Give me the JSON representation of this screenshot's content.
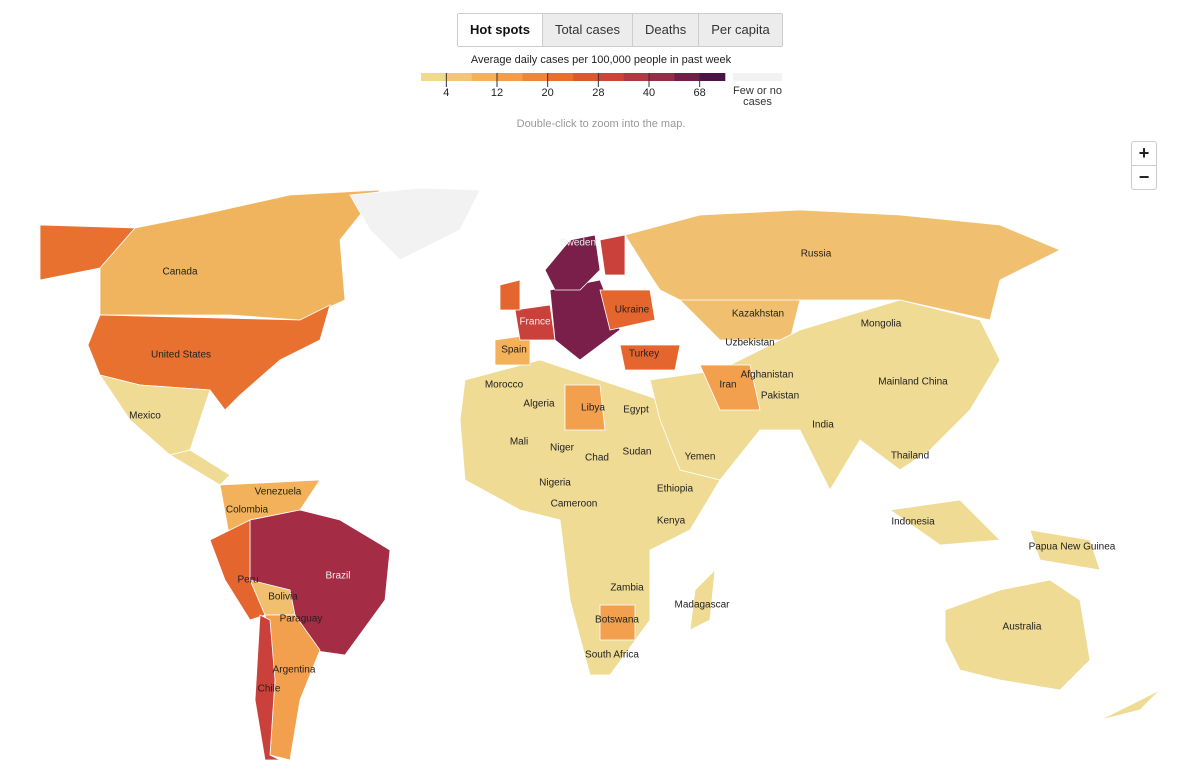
{
  "tabs": [
    "Hot spots",
    "Total cases",
    "Deaths",
    "Per capita"
  ],
  "active_tab": 0,
  "legend": {
    "title": "Average daily cases per 100,000 people in past week",
    "colors": [
      "#f0d98c",
      "#f3c47a",
      "#f3b15c",
      "#f19d4b",
      "#ec863d",
      "#e5702f",
      "#d85a33",
      "#c9453a",
      "#b03a42",
      "#922e48",
      "#6e2049",
      "#4a1545"
    ],
    "ticks": [
      4,
      12,
      20,
      28,
      40,
      68
    ],
    "no_data_label": "Few or no cases",
    "no_data_color": "#f2f2f2"
  },
  "hint": "Double-click to zoom into the map.",
  "zoom": [
    "+",
    "−"
  ],
  "map": {
    "labels": [
      "Canada",
      "United States",
      "Mexico",
      "Venezuela",
      "Colombia",
      "Peru",
      "Brazil",
      "Bolivia",
      "Paraguay",
      "Argentina",
      "Chile",
      "Spain",
      "France",
      "Sweden",
      "Ukraine",
      "Turkey",
      "Morocco",
      "Algeria",
      "Libya",
      "Egypt",
      "Mali",
      "Niger",
      "Chad",
      "Sudan",
      "Nigeria",
      "Cameroon",
      "Ethiopia",
      "Kenya",
      "Zambia",
      "Madagascar",
      "Botswana",
      "South Africa",
      "Yemen",
      "Iran",
      "Afghanistan",
      "Pakistan",
      "India",
      "Uzbekistan",
      "Kazakhstan",
      "Russia",
      "Mongolia",
      "Mainland China",
      "Thailand",
      "Indonesia",
      "Papua New Guinea",
      "Australia"
    ]
  }
}
